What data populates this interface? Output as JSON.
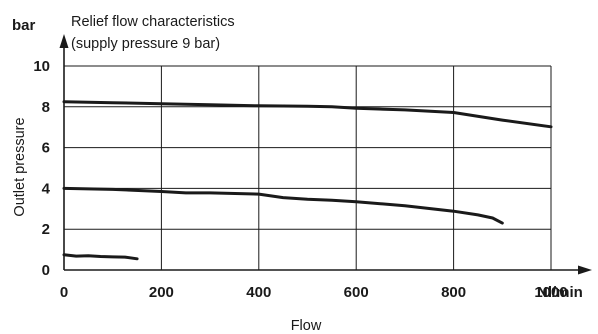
{
  "chart_data": {
    "type": "line",
    "title": "Relief flow characteristics",
    "subtitle": "(supply pressure 9 bar)",
    "xlabel": "Flow",
    "ylabel": "Outlet pressure",
    "x_unit": "Nl/min",
    "y_unit": "bar",
    "xlim": [
      0,
      1000
    ],
    "ylim": [
      0,
      10
    ],
    "x_ticks": [
      "0",
      "200",
      "400",
      "600",
      "800",
      "1000"
    ],
    "y_ticks": [
      "0",
      "2",
      "4",
      "6",
      "8",
      "10"
    ],
    "grid": true,
    "legend": "none",
    "series": [
      {
        "x": [
          0,
          100,
          200,
          300,
          400,
          500,
          550,
          600,
          700,
          800,
          900,
          1000
        ],
        "y": [
          8.25,
          8.2,
          8.15,
          8.1,
          8.05,
          8.03,
          8.0,
          7.93,
          7.85,
          7.72,
          7.35,
          7.02
        ]
      },
      {
        "x": [
          0,
          100,
          200,
          250,
          300,
          400,
          450,
          500,
          550,
          600,
          700,
          800,
          850,
          880,
          900
        ],
        "y": [
          4.0,
          3.95,
          3.85,
          3.78,
          3.78,
          3.72,
          3.55,
          3.47,
          3.42,
          3.35,
          3.15,
          2.88,
          2.7,
          2.55,
          2.3
        ]
      },
      {
        "x": [
          0,
          25,
          50,
          75,
          100,
          125,
          150
        ],
        "y": [
          0.75,
          0.68,
          0.7,
          0.66,
          0.64,
          0.63,
          0.55
        ]
      }
    ]
  }
}
